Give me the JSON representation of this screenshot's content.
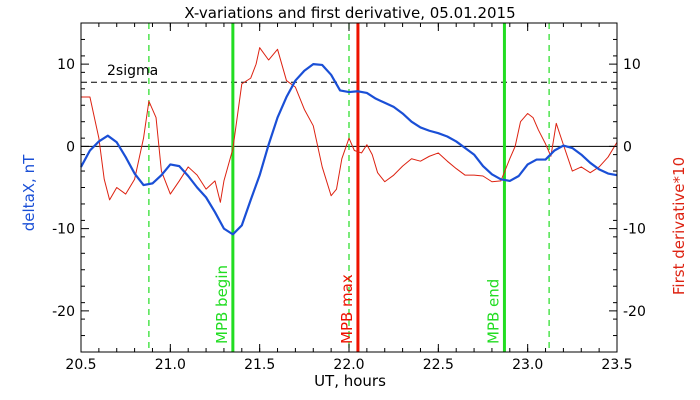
{
  "chart_data": {
    "type": "line",
    "title": "X-variations and first derivative, 05.01.2015",
    "xlabel": "UT, hours",
    "ylabel_left": "deltaX, nT",
    "ylabel_right": "First derivative*10",
    "xlim": [
      20.5,
      23.5
    ],
    "ylim": [
      -25,
      15
    ],
    "x_ticks": [
      "20.5",
      "21.0",
      "21.5",
      "22.0",
      "22.5",
      "23.0",
      "23.5"
    ],
    "y_ticks": [
      "10",
      "0",
      "-10",
      "-20"
    ],
    "threshold_label": "2sigma",
    "threshold_value": 7.8,
    "zero_line": 0,
    "series": [
      {
        "name": "deltaX, nT",
        "color": "#1a4fd6",
        "x": [
          20.5,
          20.55,
          20.6,
          20.65,
          20.7,
          20.75,
          20.8,
          20.85,
          20.9,
          20.95,
          21.0,
          21.05,
          21.1,
          21.15,
          21.2,
          21.25,
          21.3,
          21.35,
          21.4,
          21.45,
          21.5,
          21.55,
          21.6,
          21.65,
          21.7,
          21.75,
          21.8,
          21.85,
          21.9,
          21.95,
          22.0,
          22.05,
          22.1,
          22.15,
          22.2,
          22.25,
          22.3,
          22.35,
          22.4,
          22.45,
          22.5,
          22.55,
          22.6,
          22.65,
          22.7,
          22.75,
          22.8,
          22.85,
          22.9,
          22.95,
          23.0,
          23.05,
          23.1,
          23.15,
          23.2,
          23.25,
          23.3,
          23.35,
          23.4,
          23.45,
          23.5
        ],
        "y": [
          -2.5,
          -0.5,
          0.6,
          1.3,
          0.5,
          -1.3,
          -3.3,
          -4.7,
          -4.5,
          -3.5,
          -2.2,
          -2.4,
          -3.6,
          -5.0,
          -6.2,
          -8.0,
          -10.0,
          -10.7,
          -9.6,
          -6.5,
          -3.5,
          0.2,
          3.5,
          6.0,
          8.0,
          9.2,
          10.0,
          9.9,
          8.7,
          6.8,
          6.6,
          6.7,
          6.5,
          5.8,
          5.3,
          4.8,
          4.0,
          3.0,
          2.3,
          1.9,
          1.6,
          1.2,
          0.6,
          -0.2,
          -1.0,
          -2.4,
          -3.4,
          -4.0,
          -4.2,
          -3.6,
          -2.2,
          -1.6,
          -1.6,
          -0.5,
          0.1,
          -0.2,
          -1.0,
          -2.0,
          -2.8,
          -3.3,
          -3.5
        ]
      },
      {
        "name": "First derivative*10",
        "color": "#dd2211",
        "x": [
          20.5,
          20.55,
          20.6,
          20.63,
          20.66,
          20.7,
          20.75,
          20.8,
          20.85,
          20.88,
          20.92,
          20.95,
          21.0,
          21.05,
          21.1,
          21.15,
          21.2,
          21.25,
          21.28,
          21.3,
          21.35,
          21.4,
          21.45,
          21.48,
          21.5,
          21.55,
          21.6,
          21.65,
          21.7,
          21.75,
          21.8,
          21.85,
          21.9,
          21.93,
          21.96,
          22.0,
          22.03,
          22.07,
          22.1,
          22.13,
          22.16,
          22.2,
          22.25,
          22.3,
          22.35,
          22.4,
          22.45,
          22.5,
          22.55,
          22.6,
          22.65,
          22.7,
          22.75,
          22.8,
          22.85,
          22.9,
          22.93,
          22.96,
          23.0,
          23.03,
          23.06,
          23.1,
          23.13,
          23.16,
          23.2,
          23.25,
          23.3,
          23.35,
          23.4,
          23.45,
          23.5
        ],
        "y": [
          6.0,
          6.0,
          1.0,
          -4.0,
          -6.5,
          -5.0,
          -5.8,
          -4.0,
          1.0,
          5.5,
          3.5,
          -3.0,
          -5.8,
          -4.2,
          -2.5,
          -3.5,
          -5.2,
          -4.2,
          -6.8,
          -4.2,
          -0.3,
          7.6,
          8.3,
          10.0,
          12.0,
          10.5,
          11.8,
          8.0,
          7.2,
          4.5,
          2.5,
          -2.5,
          -6.0,
          -5.2,
          -1.5,
          1.0,
          -0.5,
          -0.8,
          0.2,
          -1.0,
          -3.2,
          -4.3,
          -3.5,
          -2.4,
          -1.5,
          -1.8,
          -1.2,
          -0.8,
          -1.8,
          -2.7,
          -3.5,
          -3.5,
          -3.6,
          -4.3,
          -4.2,
          -1.5,
          0.0,
          3.0,
          4.0,
          3.5,
          2.0,
          0.3,
          -1.2,
          2.8,
          0.2,
          -3.0,
          -2.5,
          -3.2,
          -2.5,
          -1.3,
          0.5
        ]
      }
    ],
    "vertical_markers": [
      {
        "x": 20.88,
        "style": "dashed",
        "color": "#22dd22",
        "label": ""
      },
      {
        "x": 21.35,
        "style": "solid",
        "color": "#22dd22",
        "label": "MPB begin"
      },
      {
        "x": 22.0,
        "style": "dashed",
        "color": "#22dd22",
        "label": ""
      },
      {
        "x": 22.05,
        "style": "solid",
        "color": "#ee1100",
        "label": "MPB max"
      },
      {
        "x": 22.87,
        "style": "solid",
        "color": "#22dd22",
        "label": "MPB end"
      },
      {
        "x": 23.12,
        "style": "dashed",
        "color": "#22dd22",
        "label": ""
      }
    ]
  }
}
